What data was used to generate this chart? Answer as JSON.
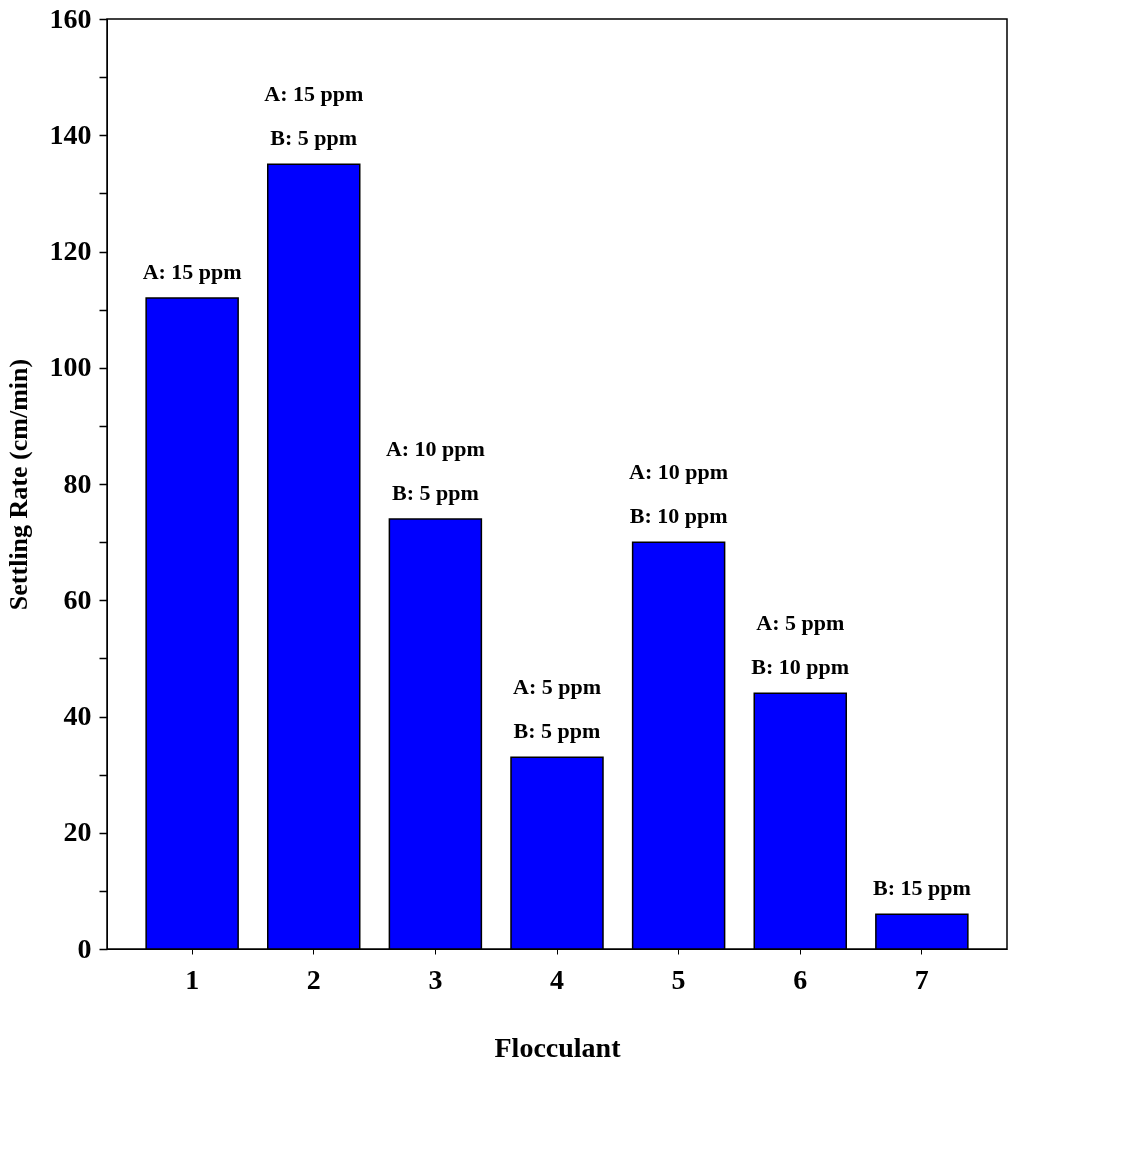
{
  "chart_data": {
    "type": "bar",
    "xlabel": "Flocculant",
    "ylabel": "Settling Rate (cm/min)",
    "categories": [
      "1",
      "2",
      "3",
      "4",
      "5",
      "6",
      "7"
    ],
    "values": [
      112,
      135,
      74,
      33,
      70,
      44,
      6
    ],
    "color": "#0000ff",
    "ylim": [
      0,
      160
    ],
    "yticks": [
      0,
      {
        "value": 10,
        "label": null
      },
      20,
      {
        "value": 30,
        "label": null
      },
      40,
      {
        "value": 50,
        "label": null
      },
      60,
      {
        "value": 70,
        "label": null
      },
      80,
      {
        "value": 90,
        "label": null
      },
      100,
      {
        "value": 110,
        "label": null
      },
      120,
      {
        "value": 130,
        "label": null
      },
      140,
      {
        "value": 150,
        "label": null
      },
      160
    ],
    "grid": false,
    "annotations": [
      {
        "text": "A: 15 ppm",
        "x": "1",
        "y": 112
      },
      {
        "text": "A: 15 ppm",
        "x": "2",
        "y": 135
      },
      {
        "text": "B: 5 ppm",
        "x": "2",
        "y": 135
      },
      {
        "text": "A: 10 ppm",
        "x": "3",
        "y": 74
      },
      {
        "text": "B: 5 ppm",
        "x": "3",
        "y": 74
      },
      {
        "text": "A: 5 ppm",
        "x": "4",
        "y": 33
      },
      {
        "text": "B: 5 ppm",
        "x": "4",
        "y": 33
      },
      {
        "text": "A: 10 ppm",
        "x": "5",
        "y": 70
      },
      {
        "text": "B: 10 ppm",
        "x": "5",
        "y": 70
      },
      {
        "text": "A: 5 ppm",
        "x": "6",
        "y": 44
      },
      {
        "text": "B: 10 ppm",
        "x": "6",
        "y": 44
      },
      {
        "text": "B: 15 ppm",
        "x": "7",
        "y": 6
      }
    ]
  }
}
